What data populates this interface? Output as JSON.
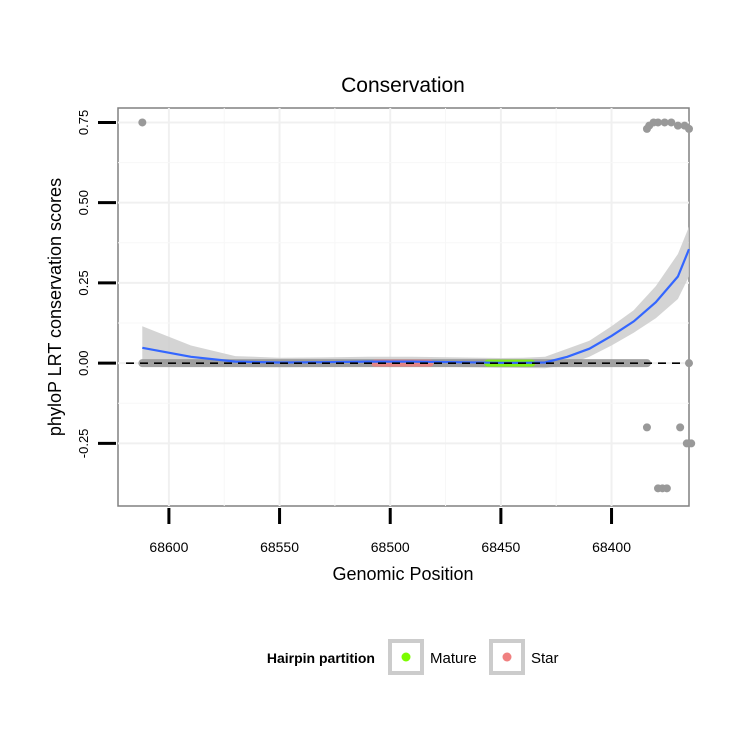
{
  "chart_data": {
    "type": "scatter",
    "title": "Conservation",
    "xlabel": "Genomic Position",
    "ylabel": "phyloP LRT conservation scores",
    "x_reversed": true,
    "xlim": [
      68623,
      68365
    ],
    "ylim": [
      -0.445,
      0.795
    ],
    "x_ticks": [
      68600,
      68550,
      68500,
      68450,
      68400
    ],
    "x_tick_labels": [
      "68600",
      "68550",
      "68500",
      "68450",
      "68400"
    ],
    "y_ticks": [
      -0.25,
      0,
      0.25,
      0.5,
      0.75
    ],
    "y_tick_labels": [
      "-0.25",
      "0.00",
      "0.25",
      "0.50",
      "0.75"
    ],
    "grid": true,
    "hline": 0,
    "legend": {
      "title": "Hairpin partition",
      "position": "bottom",
      "entries": [
        {
          "label": "Mature",
          "color": "#7CFC00"
        },
        {
          "label": "Star",
          "color": "#F08080"
        }
      ]
    },
    "points": {
      "color": "#999999",
      "x": [
        68612,
        68384,
        68383,
        68381,
        68379,
        68376,
        68373,
        68370,
        68367,
        68365,
        68384,
        68369,
        68366,
        68364,
        68379,
        68377,
        68375,
        68365
      ],
      "y": [
        0.75,
        0.73,
        0.74,
        0.75,
        0.75,
        0.75,
        0.75,
        0.74,
        0.74,
        0.73,
        -0.2,
        -0.2,
        -0.25,
        -0.25,
        -0.39,
        -0.39,
        -0.39,
        0.0
      ],
      "baseline_range": [
        68612,
        68384
      ],
      "baseline_y": 0
    },
    "partitions": [
      {
        "name": "Star",
        "color": "#F08080",
        "x_range": [
          68507,
          68482
        ],
        "y": 0
      },
      {
        "name": "Mature",
        "color": "#7CFC00",
        "x_range": [
          68456,
          68436
        ],
        "y": 0
      }
    ],
    "smooth": {
      "color": "#3366FF",
      "band_color": "#cccccc",
      "x": [
        68612,
        68590,
        68570,
        68550,
        68530,
        68510,
        68490,
        68470,
        68450,
        68440,
        68430,
        68420,
        68410,
        68400,
        68390,
        68380,
        68370,
        68365
      ],
      "y": [
        0.048,
        0.02,
        0.005,
        0.002,
        0.003,
        0.005,
        0.005,
        0.003,
        0.001,
        0.001,
        0.002,
        0.02,
        0.045,
        0.085,
        0.13,
        0.19,
        0.27,
        0.355
      ],
      "lower": [
        0.005,
        -0.005,
        -0.012,
        -0.013,
        -0.012,
        -0.01,
        -0.01,
        -0.012,
        -0.014,
        -0.015,
        -0.016,
        -0.005,
        0.02,
        0.055,
        0.095,
        0.14,
        0.2,
        0.27
      ],
      "upper": [
        0.115,
        0.055,
        0.022,
        0.017,
        0.018,
        0.02,
        0.02,
        0.018,
        0.016,
        0.017,
        0.02,
        0.045,
        0.07,
        0.115,
        0.165,
        0.24,
        0.34,
        0.425
      ]
    }
  }
}
